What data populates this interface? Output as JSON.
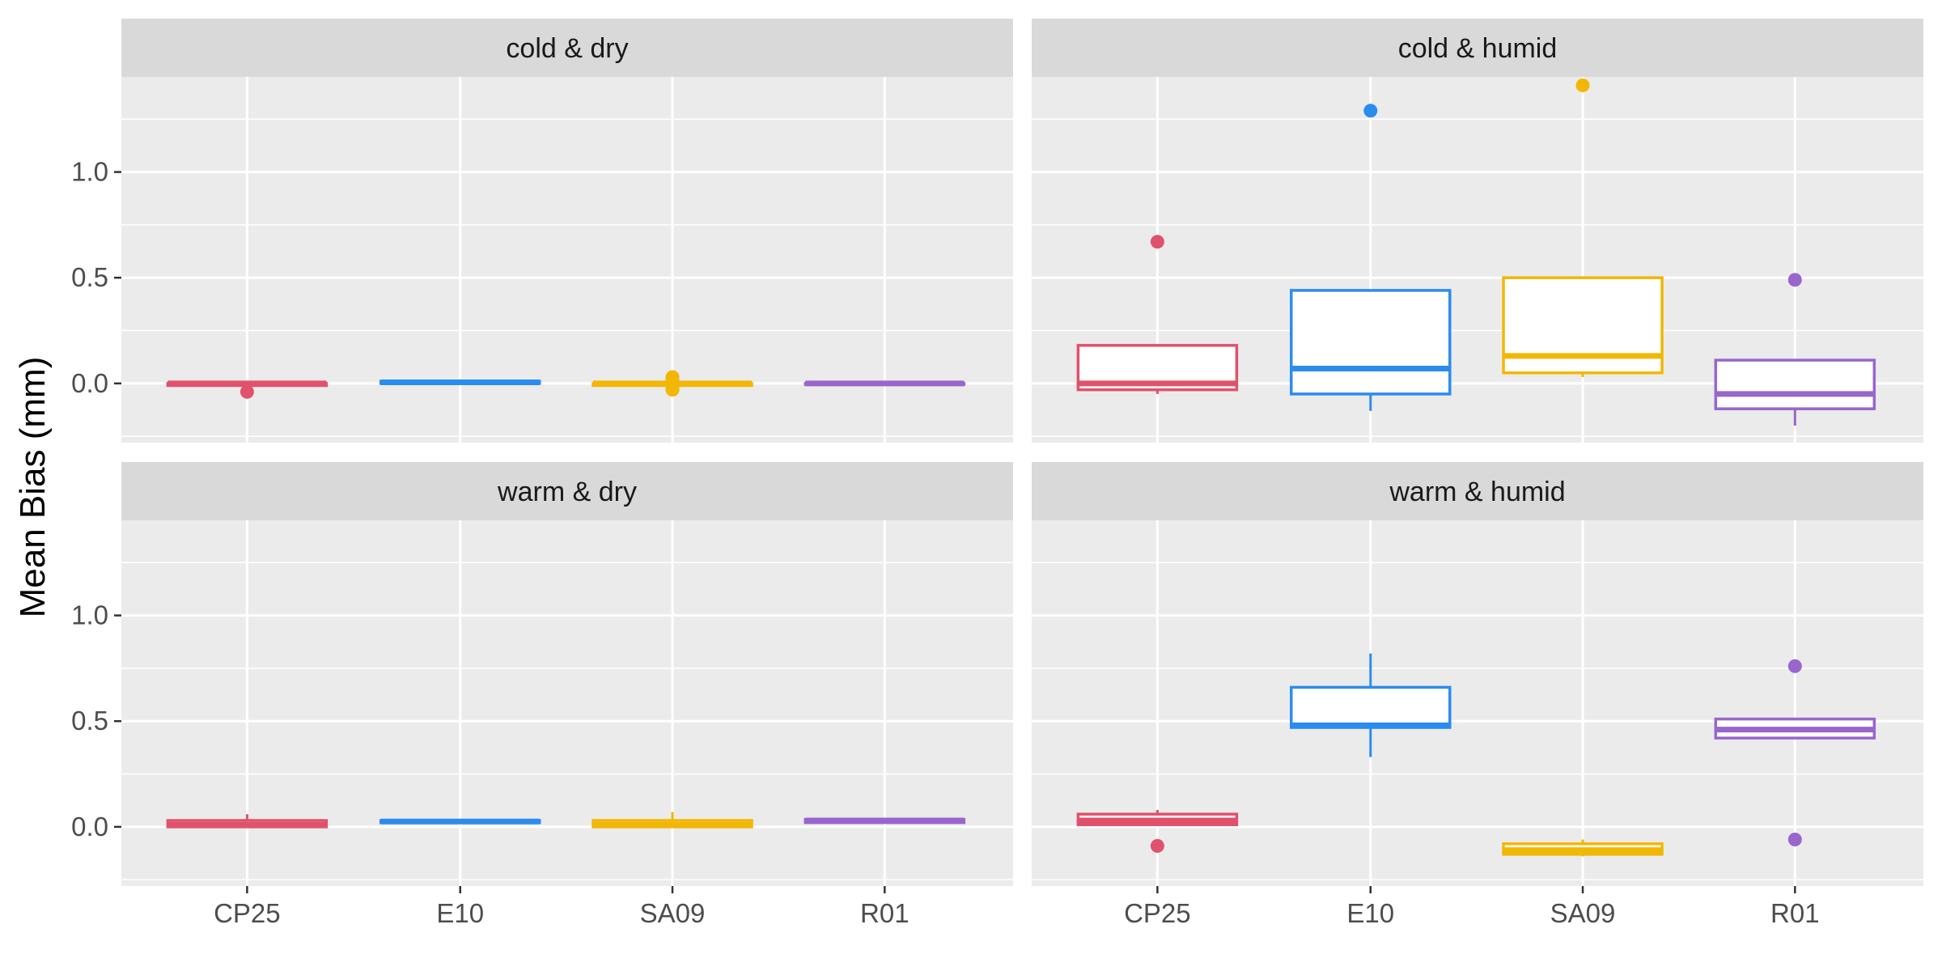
{
  "chart_data": {
    "type": "boxplot",
    "ylabel": "Mean Bias (mm)",
    "xlabel": "",
    "categories": [
      "CP25",
      "E10",
      "SA09",
      "R01"
    ],
    "colors": {
      "CP25": "#e0526b",
      "E10": "#2b8cf0",
      "SA09": "#f2b705",
      "R01": "#9966cc"
    },
    "y_ticks": [
      0.0,
      0.5,
      1.0
    ],
    "y_tick_labels": [
      "0.0",
      "0.5",
      "1.0"
    ],
    "ylim": [
      -0.28,
      1.45
    ],
    "panel_background": "#ebebeb",
    "strip_background": "#d9d9d9",
    "panels": [
      {
        "title": "cold & dry",
        "boxes": [
          {
            "category": "CP25",
            "q1": -0.01,
            "median": 0.0,
            "q3": 0.0,
            "whisker_low": -0.01,
            "whisker_high": 0.0,
            "outliers": [
              -0.04
            ]
          },
          {
            "category": "E10",
            "q1": 0.0,
            "median": 0.005,
            "q3": 0.01,
            "whisker_low": 0.0,
            "whisker_high": 0.01,
            "outliers": []
          },
          {
            "category": "SA09",
            "q1": -0.01,
            "median": 0.0,
            "q3": 0.0,
            "whisker_low": -0.01,
            "whisker_high": 0.0,
            "outliers": [
              0.03,
              0.02,
              -0.02,
              -0.03
            ]
          },
          {
            "category": "R01",
            "q1": -0.005,
            "median": 0.0,
            "q3": 0.0,
            "whisker_low": -0.005,
            "whisker_high": 0.0,
            "outliers": []
          }
        ]
      },
      {
        "title": "cold & humid",
        "boxes": [
          {
            "category": "CP25",
            "q1": -0.03,
            "median": 0.0,
            "q3": 0.18,
            "whisker_low": -0.05,
            "whisker_high": 0.18,
            "outliers": [
              0.67
            ]
          },
          {
            "category": "E10",
            "q1": -0.05,
            "median": 0.07,
            "q3": 0.44,
            "whisker_low": -0.13,
            "whisker_high": 0.44,
            "outliers": [
              1.29
            ]
          },
          {
            "category": "SA09",
            "q1": 0.05,
            "median": 0.13,
            "q3": 0.5,
            "whisker_low": 0.03,
            "whisker_high": 0.5,
            "outliers": [
              1.41
            ]
          },
          {
            "category": "R01",
            "q1": -0.12,
            "median": -0.05,
            "q3": 0.11,
            "whisker_low": -0.2,
            "whisker_high": 0.11,
            "outliers": [
              0.49
            ]
          }
        ]
      },
      {
        "title": "warm & dry",
        "boxes": [
          {
            "category": "CP25",
            "q1": 0.0,
            "median": 0.01,
            "q3": 0.03,
            "whisker_low": 0.0,
            "whisker_high": 0.06,
            "outliers": []
          },
          {
            "category": "E10",
            "q1": 0.02,
            "median": 0.025,
            "q3": 0.03,
            "whisker_low": 0.02,
            "whisker_high": 0.03,
            "outliers": []
          },
          {
            "category": "SA09",
            "q1": 0.0,
            "median": 0.01,
            "q3": 0.03,
            "whisker_low": 0.0,
            "whisker_high": 0.07,
            "outliers": []
          },
          {
            "category": "R01",
            "q1": 0.02,
            "median": 0.03,
            "q3": 0.035,
            "whisker_low": 0.02,
            "whisker_high": 0.035,
            "outliers": []
          }
        ]
      },
      {
        "title": "warm & humid",
        "boxes": [
          {
            "category": "CP25",
            "q1": 0.01,
            "median": 0.03,
            "q3": 0.06,
            "whisker_low": 0.01,
            "whisker_high": 0.08,
            "outliers": [
              -0.09
            ]
          },
          {
            "category": "E10",
            "q1": 0.47,
            "median": 0.48,
            "q3": 0.66,
            "whisker_low": 0.33,
            "whisker_high": 0.82,
            "outliers": []
          },
          {
            "category": "SA09",
            "q1": -0.13,
            "median": -0.11,
            "q3": -0.08,
            "whisker_low": -0.14,
            "whisker_high": -0.06,
            "outliers": []
          },
          {
            "category": "R01",
            "q1": 0.42,
            "median": 0.46,
            "q3": 0.51,
            "whisker_low": 0.42,
            "whisker_high": 0.51,
            "outliers": [
              0.76,
              -0.06
            ]
          }
        ]
      }
    ]
  }
}
